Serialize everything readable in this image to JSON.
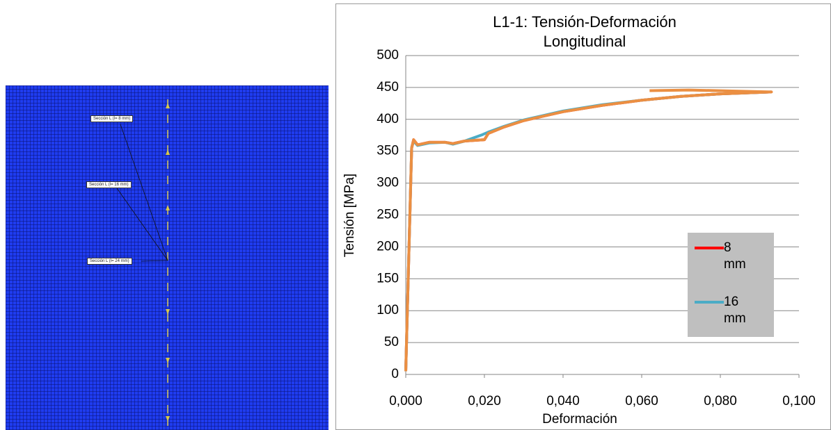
{
  "figure": {
    "labels": [
      "Sección L (l= 8 mm)",
      "Sección L (l= 16 mm)",
      "Sección L (l= 24 mm)"
    ]
  },
  "chart_data": {
    "type": "line",
    "title": "L1-1: Tensión-Deformación Longitudinal",
    "x_label": "Deformación",
    "y_label": "Tensión [MPa]",
    "xlim": [
      0,
      0.1
    ],
    "ylim": [
      0,
      500
    ],
    "xticks": [
      {
        "value": 0,
        "label": "0,000"
      },
      {
        "value": 0.02,
        "label": "0,020"
      },
      {
        "value": 0.04,
        "label": "0,040"
      },
      {
        "value": 0.06,
        "label": "0,060"
      },
      {
        "value": 0.08,
        "label": "0,080"
      },
      {
        "value": 0.1,
        "label": "0,100"
      }
    ],
    "yticks": [
      0,
      50,
      100,
      150,
      200,
      250,
      300,
      350,
      400,
      450,
      500
    ],
    "grid": true,
    "series": [
      {
        "name": "8 mm",
        "color": "#ff0000",
        "x": [
          0,
          0.0015,
          0.002,
          0.003,
          0.006,
          0.01,
          0.012,
          0.015,
          0.02,
          0.021,
          0.025,
          0.03,
          0.035,
          0.04,
          0.05,
          0.06,
          0.07,
          0.08,
          0.093
        ],
        "values": [
          5,
          355,
          368,
          360,
          364,
          364,
          362,
          366,
          368,
          378,
          388,
          398,
          405,
          412,
          422,
          430,
          436,
          440,
          443
        ]
      },
      {
        "name": "16 mm",
        "color": "#4bacc6",
        "x": [
          0,
          0.0015,
          0.002,
          0.003,
          0.006,
          0.01,
          0.012,
          0.015,
          0.0195,
          0.021,
          0.025,
          0.03,
          0.035,
          0.04,
          0.05,
          0.06,
          0.07,
          0.08,
          0.093
        ],
        "values": [
          5,
          356,
          366,
          359,
          363,
          364,
          361,
          366,
          376,
          380,
          389,
          399,
          406,
          413,
          423,
          430,
          436,
          440,
          443
        ]
      },
      {
        "color": "#eb8f42",
        "x": [
          0,
          0.0015,
          0.002,
          0.003,
          0.006,
          0.01,
          0.012,
          0.015,
          0.02,
          0.021,
          0.025,
          0.03,
          0.035,
          0.04,
          0.05,
          0.06,
          0.07,
          0.08,
          0.093,
          0.072,
          0.062
        ],
        "values": [
          5,
          355,
          368,
          360,
          364,
          364,
          362,
          366,
          368,
          378,
          388,
          398,
          405,
          412,
          422,
          430,
          436,
          440,
          443,
          446,
          445
        ]
      }
    ],
    "legend": "right"
  }
}
